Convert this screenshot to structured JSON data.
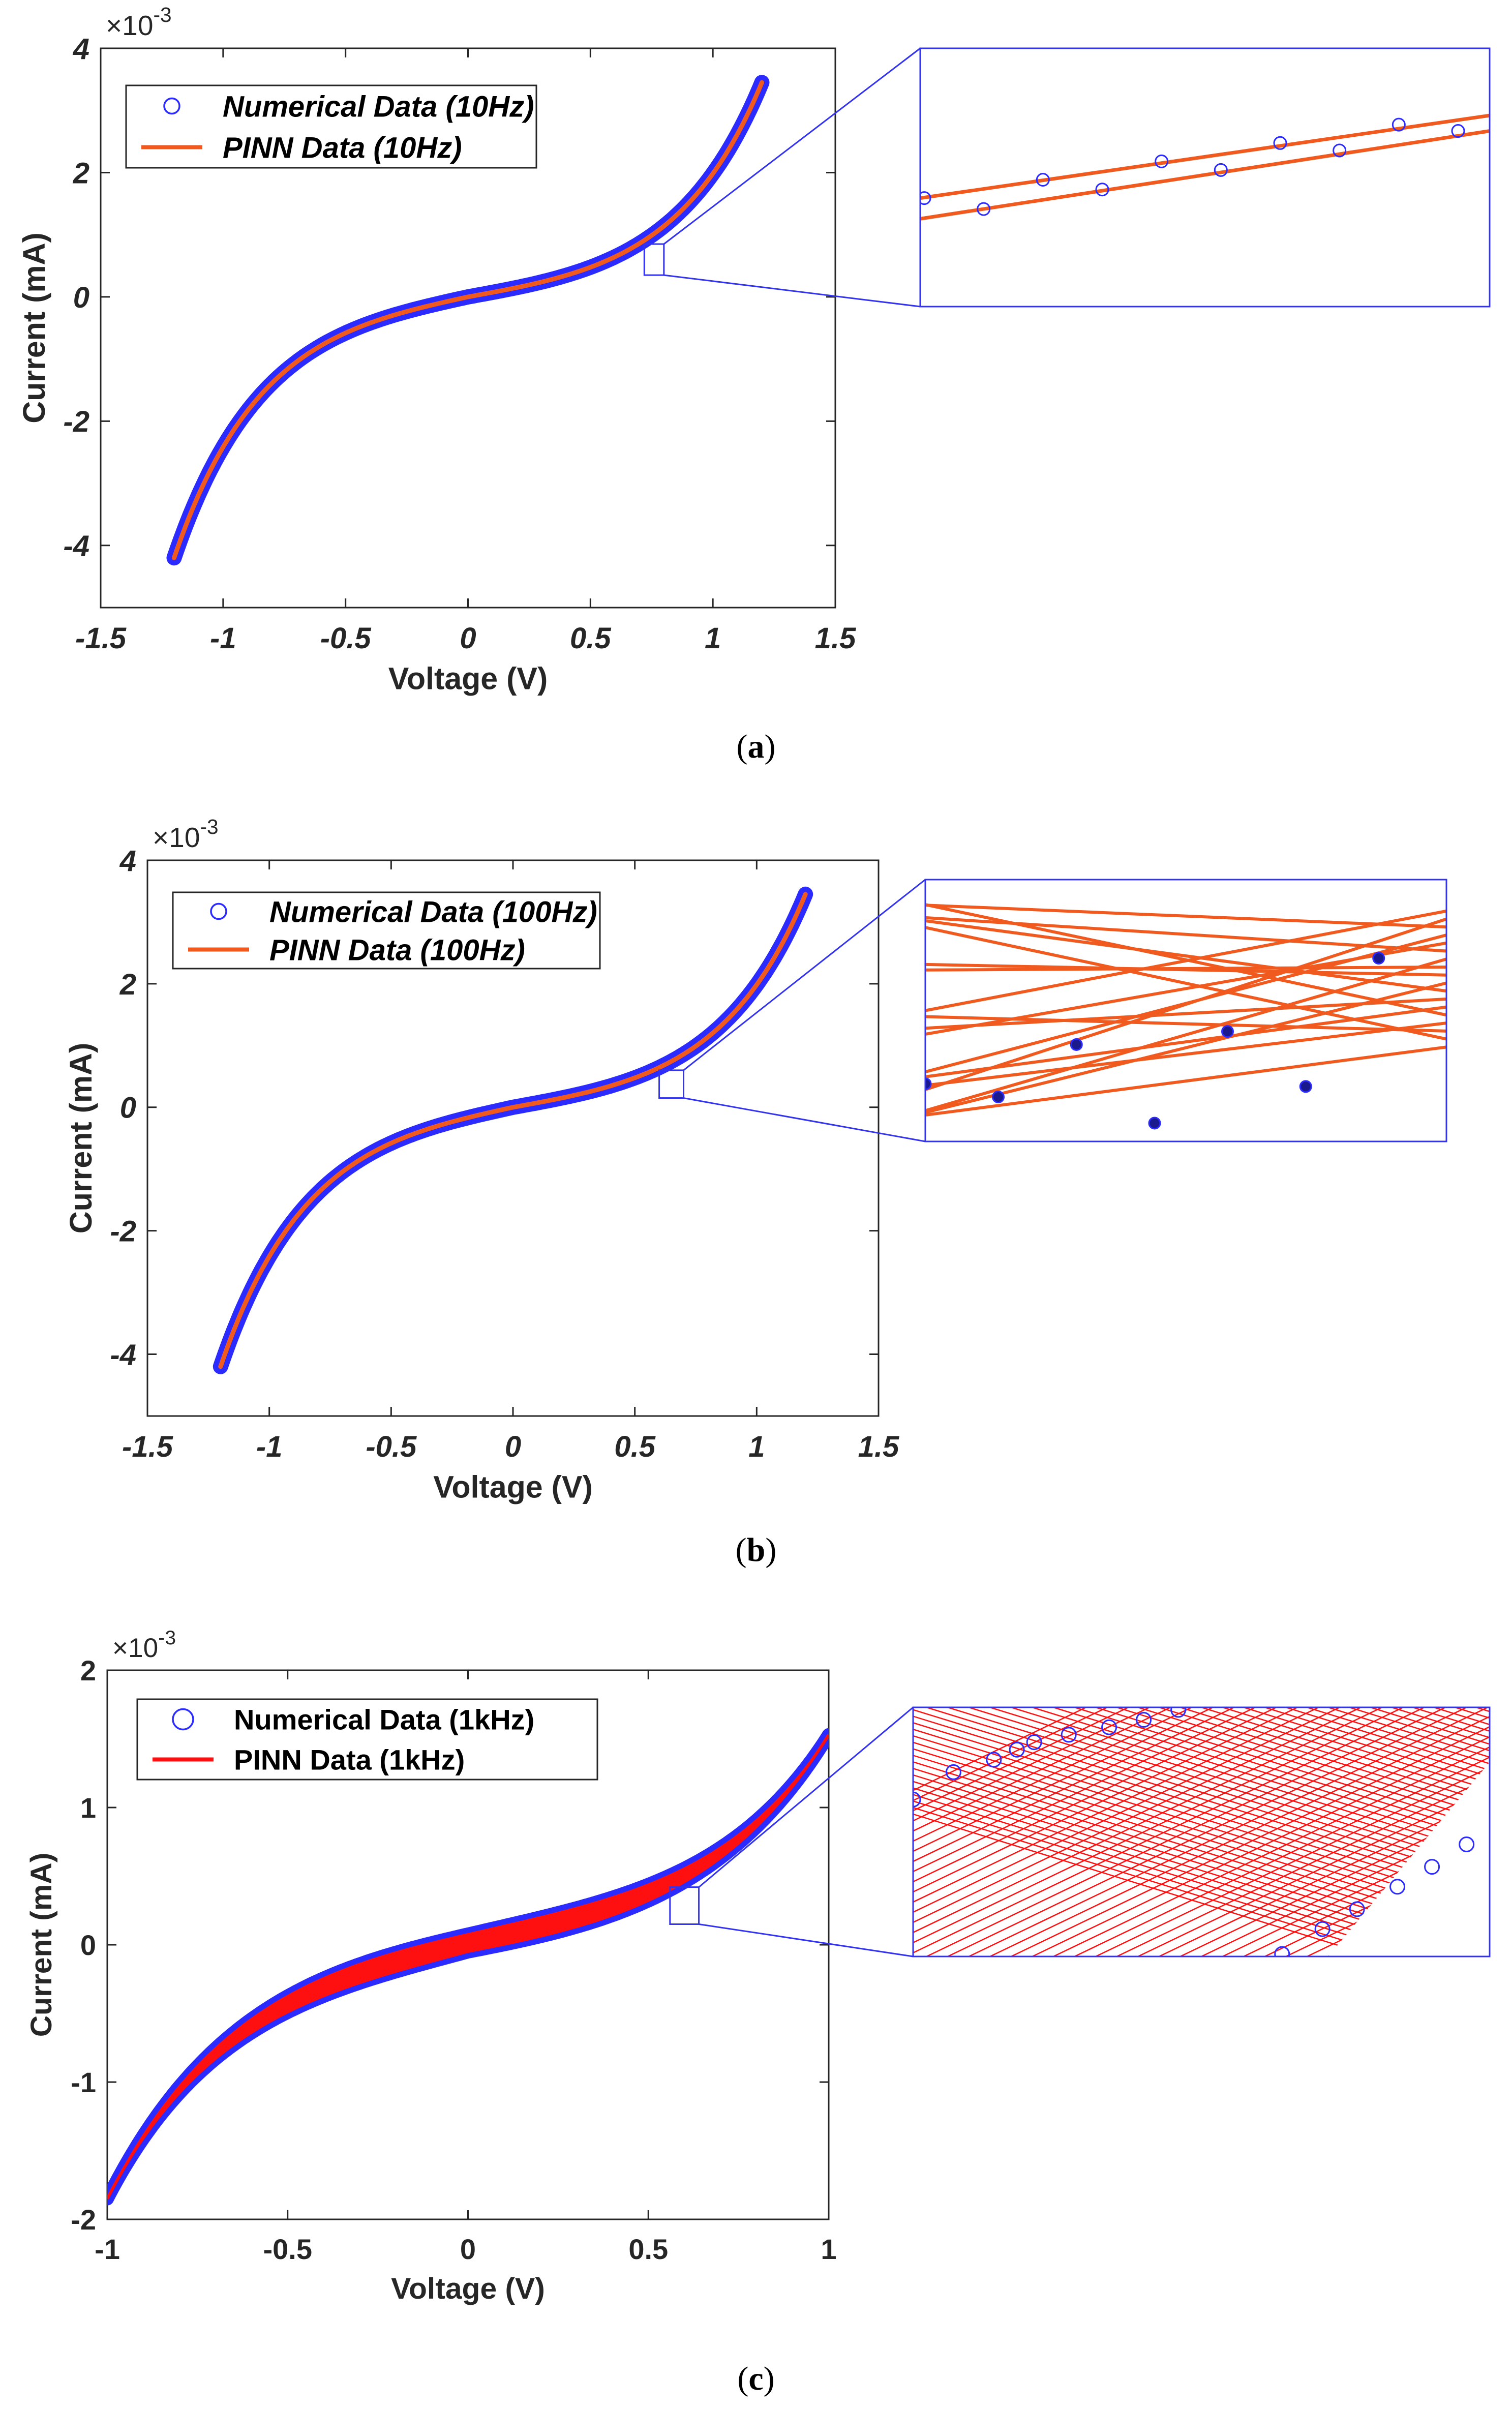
{
  "colors": {
    "numerical": "#2b2bff",
    "pinn_a": "#f05a1e",
    "pinn_b": "#f05a1e",
    "pinn_c": "#ff1010",
    "zoom_frame": "#3333ee",
    "axes": "#262626"
  },
  "chart_data": [
    {
      "id": "a",
      "type": "line",
      "caption": "a",
      "title": "",
      "xlabel": "Voltage (V)",
      "ylabel": "Current (mA)",
      "exponent_label": "×10",
      "exponent_power": "-3",
      "xlim": [
        -1.5,
        1.5
      ],
      "ylim": [
        -5,
        4
      ],
      "xticks": [
        "-1.5",
        "-1",
        "-0.5",
        "0",
        "0.5",
        "1",
        "1.5"
      ],
      "yticks": [
        "-4",
        "-2",
        "0",
        "2",
        "4"
      ],
      "legend_position": "top-left",
      "legend_italic": true,
      "series": [
        {
          "name": "Numerical Data (10Hz)",
          "style": "circle-markers",
          "x_range": [
            -1.2,
            1.2
          ]
        },
        {
          "name": "PINN Data (10Hz)",
          "style": "line",
          "x_range": [
            -1.2,
            1.2
          ]
        }
      ],
      "curve_model": {
        "form": "a*sinh(b*x)+c*x^3",
        "neg_end": -4.2,
        "pos_end": 3.45
      },
      "hysteresis_width": 0.0,
      "zoom_box": {
        "x_range": [
          0.72,
          0.8
        ],
        "y_range": [
          0.35,
          0.85
        ]
      },
      "inset": {
        "lines": 2,
        "markers": 10
      }
    },
    {
      "id": "b",
      "type": "line",
      "caption": "b",
      "title": "",
      "xlabel": "Voltage (V)",
      "ylabel": "Current (mA)",
      "exponent_label": "×10",
      "exponent_power": "-3",
      "xlim": [
        -1.5,
        1.5
      ],
      "ylim": [
        -5,
        4
      ],
      "xticks": [
        "-1.5",
        "-1",
        "-0.5",
        "0",
        "0.5",
        "1",
        "1.5"
      ],
      "yticks": [
        "-4",
        "-2",
        "0",
        "2",
        "4"
      ],
      "legend_position": "top-left",
      "legend_italic": true,
      "series": [
        {
          "name": "Numerical Data (100Hz)",
          "style": "circle-markers",
          "x_range": [
            -1.2,
            1.2
          ]
        },
        {
          "name": "PINN Data (100Hz)",
          "style": "line",
          "x_range": [
            -1.2,
            1.2
          ]
        }
      ],
      "curve_model": {
        "form": "a*sinh(b*x)+c*x^3",
        "neg_end": -4.2,
        "pos_end": 3.45
      },
      "hysteresis_width": 0.0,
      "zoom_box": {
        "x_range": [
          0.6,
          0.7
        ],
        "y_range": [
          0.15,
          0.6
        ]
      },
      "inset": {
        "lines": 18,
        "markers": 7
      }
    },
    {
      "id": "c",
      "type": "line",
      "caption": "c",
      "title": "",
      "xlabel": "Voltage (V)",
      "ylabel": "Current (mA)",
      "exponent_label": "×10",
      "exponent_power": "-3",
      "xlim": [
        -1,
        1
      ],
      "ylim": [
        -2,
        2
      ],
      "xticks": [
        "-1",
        "-0.5",
        "0",
        "0.5",
        "1"
      ],
      "yticks": [
        "-2",
        "-1",
        "0",
        "1",
        "2"
      ],
      "legend_position": "top-left",
      "legend_italic": false,
      "series": [
        {
          "name": "Numerical Data (1kHz)",
          "style": "circle-markers",
          "x_range": [
            -1,
            1
          ]
        },
        {
          "name": "PINN Data (1kHz)",
          "style": "filled-hysteresis",
          "x_range": [
            -1,
            1
          ]
        }
      ],
      "curve_model": {
        "form": "a*sinh(b*x)+c*x^3",
        "neg_end": -1.85,
        "pos_end": 1.53
      },
      "hysteresis_width": 0.13,
      "zoom_box": {
        "x_range": [
          0.56,
          0.64
        ],
        "y_range": [
          0.15,
          0.42
        ]
      },
      "inset": {
        "lines": 60,
        "markers": 16
      }
    }
  ]
}
